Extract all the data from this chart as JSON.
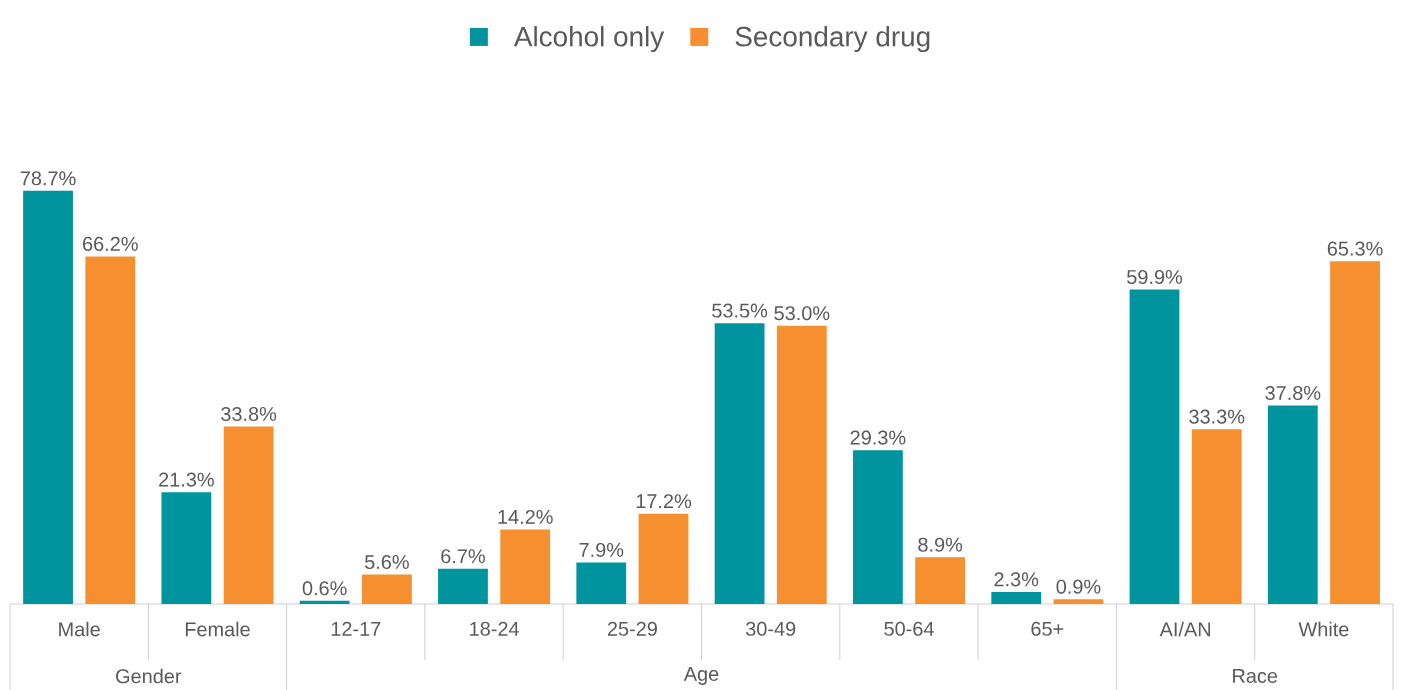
{
  "chart_data": {
    "type": "bar",
    "categories": [
      "Male",
      "Female",
      "12-17",
      "18-24",
      "25-29",
      "30-49",
      "50-64",
      "65+",
      "AI/AN",
      "White"
    ],
    "series": [
      {
        "name": "Alcohol only",
        "color": "#00959e",
        "values": [
          78.7,
          21.3,
          0.6,
          6.7,
          7.9,
          53.5,
          29.3,
          2.3,
          59.9,
          37.8
        ],
        "value_labels": [
          "78.7%",
          "21.3%",
          "0.6%",
          "6.7%",
          "7.9%",
          "53.5%",
          "29.3%",
          "2.3%",
          "59.9%",
          "37.8%"
        ]
      },
      {
        "name": "Secondary drug",
        "color": "#f58f2f",
        "values": [
          66.2,
          33.8,
          5.6,
          14.2,
          17.2,
          53.0,
          8.9,
          0.9,
          33.3,
          65.3
        ],
        "value_labels": [
          "66.2%",
          "33.8%",
          "5.6%",
          "14.2%",
          "17.2%",
          "53.0%",
          "8.9%",
          "0.9%",
          "33.3%",
          "65.3%"
        ]
      }
    ],
    "legend": "top",
    "annotations": [
      "Gender",
      "Age",
      "Race"
    ]
  }
}
